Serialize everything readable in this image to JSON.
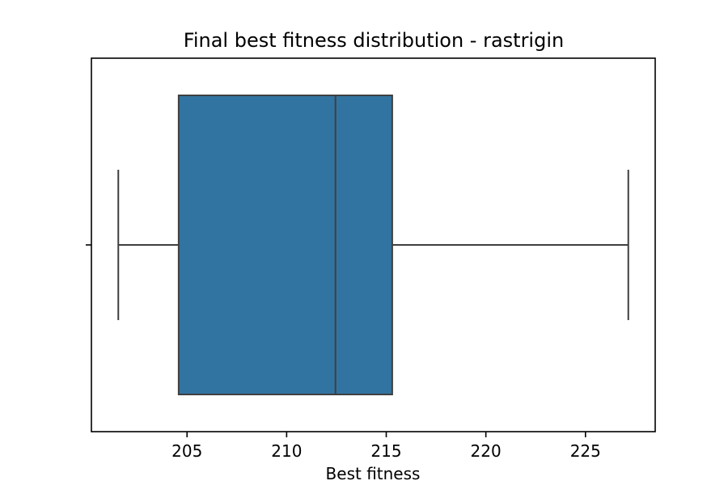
{
  "chart_data": {
    "type": "box",
    "title": "Final best fitness distribution - rastrigin",
    "xlabel": "Best fitness",
    "ylabel": "",
    "xlim": [
      200.2,
      228.5
    ],
    "xticks": [
      205,
      210,
      215,
      220,
      225
    ],
    "xtick_labels": [
      "205",
      "210",
      "215",
      "220",
      "225"
    ],
    "box": {
      "whisker_low": 201.55,
      "q1": 204.58,
      "median": 212.45,
      "q3": 215.3,
      "whisker_high": 227.15
    },
    "colors": {
      "box_fill": "#3274a1",
      "box_edge": "#3f3f3f"
    },
    "grid": false,
    "legend": "none"
  }
}
